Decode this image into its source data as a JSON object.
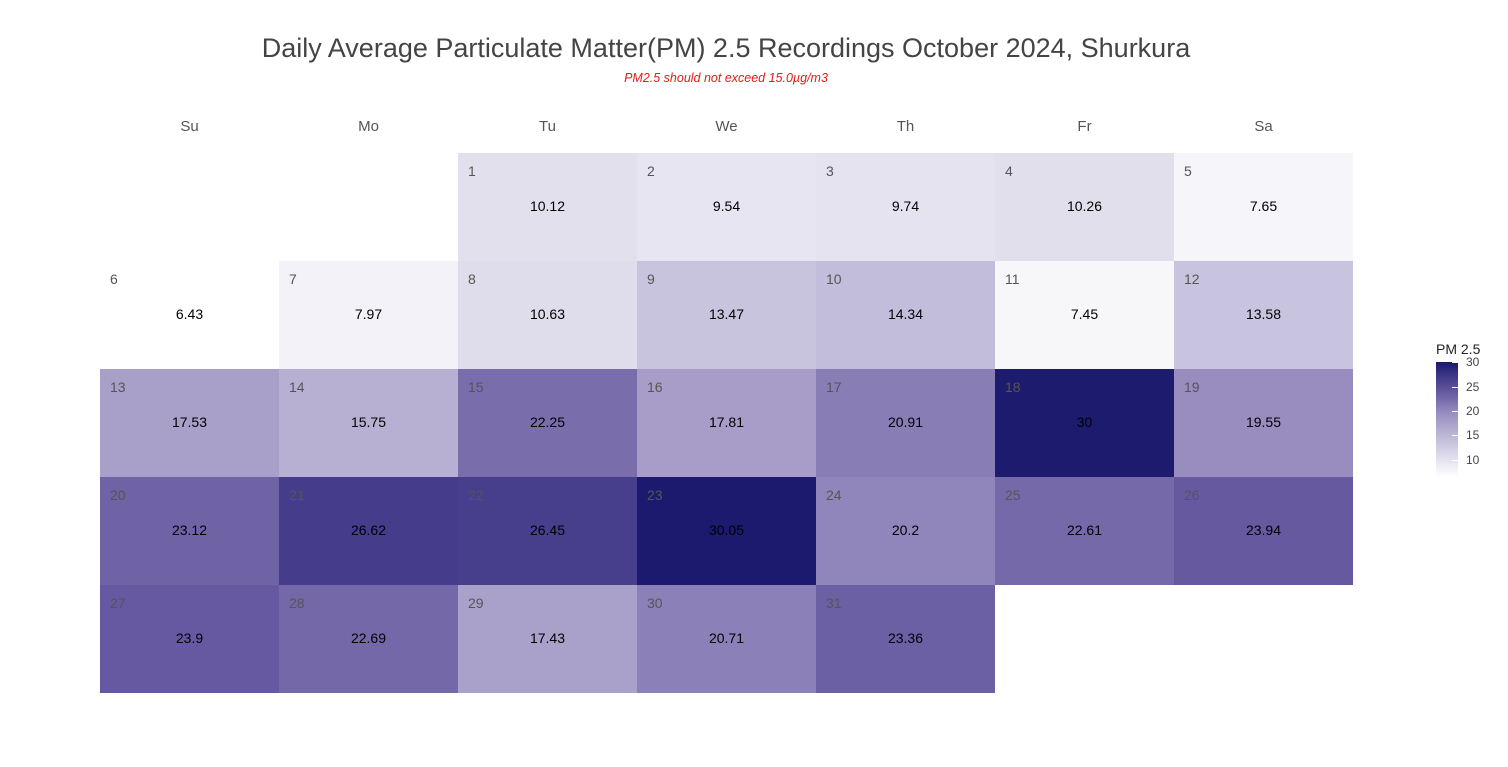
{
  "chart_data": {
    "type": "heatmap",
    "title": "Daily Average Particulate Matter(PM) 2.5 Recordings October 2024,  Shurkura",
    "subtitle": "PM2.5 should not exceed 15.0µg/m3",
    "weekdays": [
      "Su",
      "Mo",
      "Tu",
      "We",
      "Th",
      "Fr",
      "Sa"
    ],
    "month": "October 2024",
    "first_weekday_index": 2,
    "days": [
      {
        "day": "1",
        "value": "10.12"
      },
      {
        "day": "2",
        "value": "9.54"
      },
      {
        "day": "3",
        "value": "9.74"
      },
      {
        "day": "4",
        "value": "10.26"
      },
      {
        "day": "5",
        "value": "7.65"
      },
      {
        "day": "6",
        "value": "6.43"
      },
      {
        "day": "7",
        "value": "7.97"
      },
      {
        "day": "8",
        "value": "10.63"
      },
      {
        "day": "9",
        "value": "13.47"
      },
      {
        "day": "10",
        "value": "14.34"
      },
      {
        "day": "11",
        "value": "7.45"
      },
      {
        "day": "12",
        "value": "13.58"
      },
      {
        "day": "13",
        "value": "17.53"
      },
      {
        "day": "14",
        "value": "15.75"
      },
      {
        "day": "15",
        "value": "22.25"
      },
      {
        "day": "16",
        "value": "17.81"
      },
      {
        "day": "17",
        "value": "20.91"
      },
      {
        "day": "18",
        "value": "30"
      },
      {
        "day": "19",
        "value": "19.55"
      },
      {
        "day": "20",
        "value": "23.12"
      },
      {
        "day": "21",
        "value": "26.62"
      },
      {
        "day": "22",
        "value": "26.45"
      },
      {
        "day": "23",
        "value": "30.05"
      },
      {
        "day": "24",
        "value": "20.2"
      },
      {
        "day": "25",
        "value": "22.61"
      },
      {
        "day": "26",
        "value": "23.94"
      },
      {
        "day": "27",
        "value": "23.9"
      },
      {
        "day": "28",
        "value": "22.69"
      },
      {
        "day": "29",
        "value": "17.43"
      },
      {
        "day": "30",
        "value": "20.71"
      },
      {
        "day": "31",
        "value": "23.36"
      }
    ],
    "legend": {
      "title": "PM 2.5",
      "ticks": [
        "10",
        "15",
        "20",
        "25",
        "30"
      ],
      "range": [
        6.43,
        30.05
      ]
    },
    "colors": {
      "low": "#ffffff",
      "high": "#1b1a6e",
      "subtitle": "#e41a1c"
    }
  }
}
